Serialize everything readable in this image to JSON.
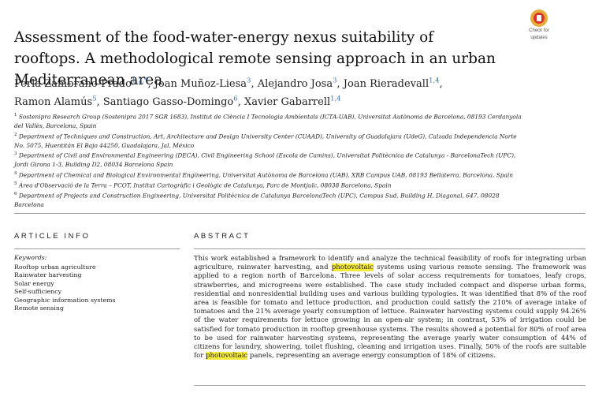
{
  "title": "Assessment of the food-water-energy nexus suitability of rooftops. A methodological remote sensing approach in an urban Mediterranean area",
  "badge": {
    "line1": "Check for",
    "line2": "updates"
  },
  "authors": [
    {
      "name": "Perla Zambrano-Prado",
      "sup": "1,2,*",
      "sep": ", "
    },
    {
      "name": "Joan Muñoz-Liesa",
      "sup": "3",
      "sep": ", "
    },
    {
      "name": "Alejandro Josa",
      "sup": "3",
      "sep": ", "
    },
    {
      "name": "Joan Rieradevall",
      "sup": "1,4",
      "sep": ", "
    },
    {
      "name": "Ramon Alamús",
      "sup": "5",
      "sep": ", "
    },
    {
      "name": "Santiago Gasso-Domingo",
      "sup": "6",
      "sep": ", "
    },
    {
      "name": "Xavier Gabarrell",
      "sup": "1,4",
      "sep": ""
    }
  ],
  "affiliations": [
    {
      "num": "1",
      "text": "Sostenipra Research Group (Sostenipra 2017 SGR 1683), Institut de Ciència I Tecnologia Ambientals (ICTA-UAB), Universitat Autònoma de Barcelona, 08193 Cerdanyola del Vallès, Barcelona, Spain"
    },
    {
      "num": "2",
      "text": "Department of Techniques and Construction, Art, Architecture and Design University Center (CUAAD), University of Guadalajara (UdeG), Calzada Independencia Norte No. 5075, Huentitán El Bajo 44250, Guadalajara, Jal, México"
    },
    {
      "num": "3",
      "text": "Department of Civil and Environmental Engineering (DECA), Civil Engineering School (Escola de Camins), Universitat Politècnica de Catalunya - BarcelonaTech (UPC), Jordi Girona 1-3, Building D2, 08034 Barcelona Spain"
    },
    {
      "num": "4",
      "text": "Department of Chemical and Biological Environmental Engineering, Universitat Autònoma de Barcelona (UAB), XRB Campus UAB, 08193 Bellaterra, Barcelona, Spain"
    },
    {
      "num": "5",
      "text": "Àrea d'Observació de la Terra – PCOT, Institut Cartogràfic i Geològic de Catalunya, Parc de Montjuïc, 08038 Barcelona, Spain"
    },
    {
      "num": "6",
      "text": "Department of Projects and Construction Engineering, Universitat Politècnica de Catalunya BarcelonaTech (UPC), Campus Sud, Building H, Diagonal, 647, 08028 Barcelona"
    }
  ],
  "article_info": {
    "heading": "ARTICLE INFO",
    "keywords_label": "Keywords:",
    "keywords": [
      "Rooftop urban agriculture",
      "Rainwater harvesting",
      "Solar energy",
      "Self-sufficiency",
      "Geographic information systems",
      "Remote sensing"
    ]
  },
  "abstract": {
    "heading": "ABSTRACT",
    "part1": "This work established a framework to identify and analyze the technical feasibility of roofs for integrating urban agriculture, rainwater harvesting, and ",
    "hl1": "photovoltaic",
    "part2": " systems using various remote sensing. The framework was applied to a region north of Barcelona. Three levels of solar access requirements for tomatoes, leafy crops, strawberries, and microgreens were established. The case study included compact and disperse urban forms, residential and nonresidential building uses and various building typologies. It was identified that 8% of the roof area is feasible for tomato and lettuce production, and production could satisfy the 210% of average intake of tomatoes and the 21% average yearly consumption of lettuce. Rainwater harvesting systems could supply 94.26% of the water requirements for lettuce growing in an open-air system; in contrast, 53% of irrigation could be satisfied for tomato production in rooftop greenhouse systems. The results showed a potential for 80% of roof area to be used for rainwater harvesting systems, representing the average yearly water consumption of 44% of citizens for laundry, showering, toilet flushing, cleaning and irrigation uses. Finally, 50% of the roofs are suitable for ",
    "hl2": "photovoltaic",
    "part3": " panels, representing an average energy consumption of 18% of citizens."
  }
}
